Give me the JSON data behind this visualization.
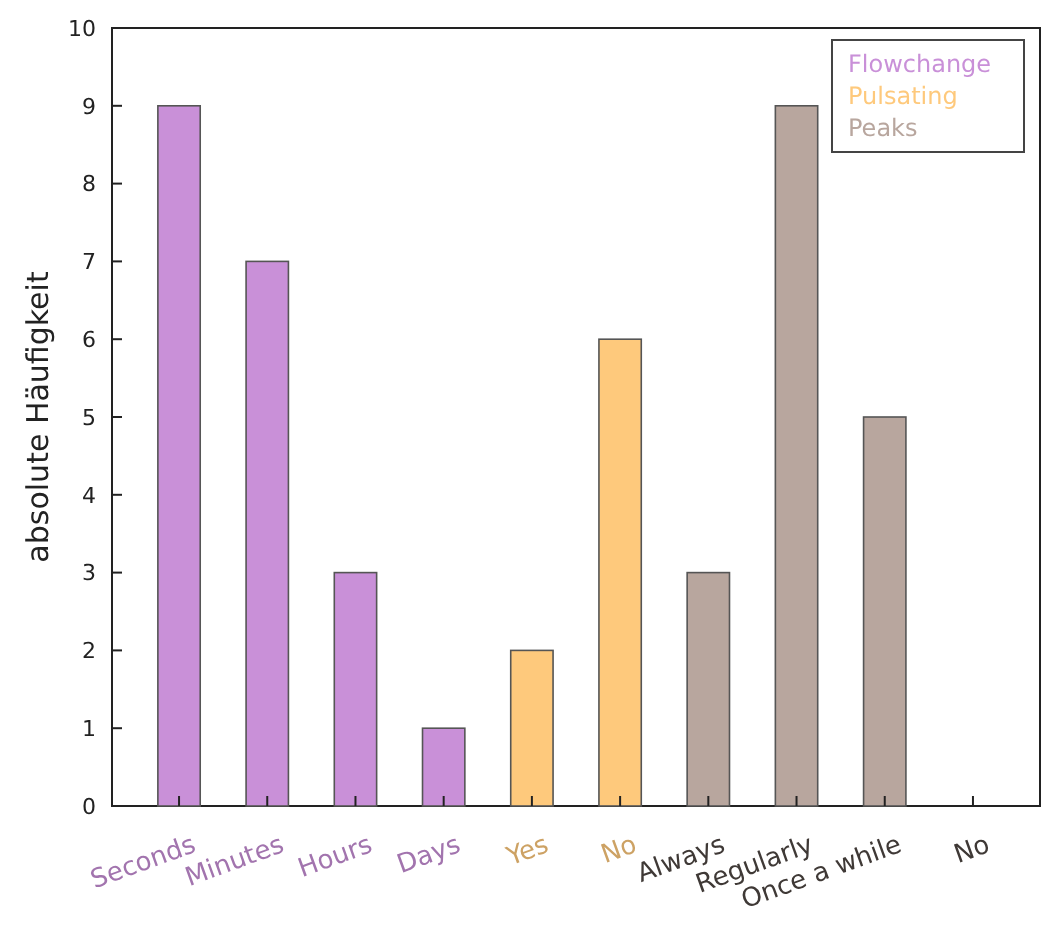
{
  "chart_data": {
    "type": "bar",
    "ylabel": "absolute Häufigkeit",
    "categories": [
      "Seconds",
      "Minutes",
      "Hours",
      "Days",
      "Yes",
      "No",
      "Always",
      "Regularly",
      "Once a while",
      "No"
    ],
    "series": [
      {
        "name": "Flowchange",
        "color": "#c990d8",
        "values": [
          9,
          7,
          3,
          1,
          null,
          null,
          null,
          null,
          null,
          null
        ]
      },
      {
        "name": "Pulsating",
        "color": "#fec97c",
        "values": [
          null,
          null,
          null,
          null,
          2,
          6,
          null,
          null,
          null,
          null
        ]
      },
      {
        "name": "Peaks",
        "color": "#b8a69e",
        "values": [
          null,
          null,
          null,
          null,
          null,
          null,
          3,
          9,
          5,
          0
        ]
      }
    ],
    "ylim": [
      0,
      10
    ],
    "yticks": [
      0,
      1,
      2,
      3,
      4,
      5,
      6,
      7,
      8,
      9,
      10
    ],
    "legend": "top right"
  }
}
